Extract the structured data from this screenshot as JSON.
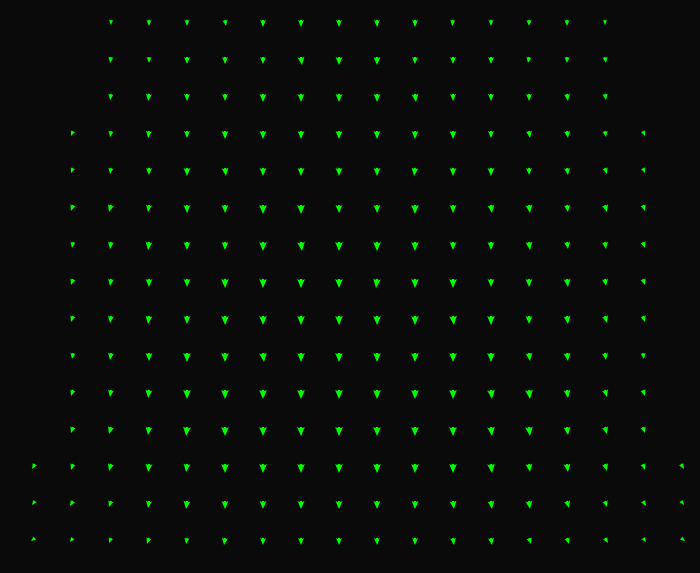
{
  "chart_data": {
    "type": "quiver",
    "color": "#00ff00",
    "tick_labels": false,
    "grid": false,
    "xlim": [
      0,
      700
    ],
    "ylim": [
      573,
      0
    ],
    "x": [
      35,
      73,
      111,
      149,
      187,
      225,
      263,
      301,
      339,
      377,
      415,
      453,
      491,
      529,
      567,
      605,
      643,
      681
    ],
    "y": [
      20,
      57,
      94,
      131,
      168,
      205,
      242,
      279,
      316,
      353,
      390,
      427,
      464,
      501,
      538
    ],
    "u": [
      [
        null,
        null,
        0,
        0,
        0,
        1,
        0,
        0,
        0,
        0,
        0,
        -1,
        0,
        0,
        0,
        0,
        null,
        null
      ],
      [
        null,
        null,
        -1,
        0,
        0,
        0,
        0,
        1,
        0,
        0,
        0,
        0,
        0,
        -1,
        0,
        1,
        null,
        null
      ],
      [
        null,
        null,
        -1,
        -1,
        0,
        0,
        0,
        0,
        0,
        0,
        1,
        0,
        0,
        0,
        1,
        1,
        null,
        null
      ],
      [
        null,
        -2,
        -1,
        -1,
        0,
        0,
        0,
        0,
        0,
        0,
        0,
        0,
        0,
        1,
        1,
        1,
        2,
        null
      ],
      [
        null,
        -2,
        -1,
        0,
        0,
        1,
        0,
        0,
        0,
        0,
        -1,
        0,
        0,
        0,
        1,
        2,
        2,
        null
      ],
      [
        null,
        -2,
        -2,
        -1,
        0,
        0,
        0,
        0,
        0,
        0,
        0,
        0,
        1,
        1,
        1,
        2,
        2,
        null
      ],
      [
        null,
        -1,
        -1,
        -1,
        0,
        0,
        0,
        1,
        0,
        0,
        0,
        0,
        0,
        1,
        1,
        1,
        2,
        null
      ],
      [
        null,
        -2,
        -1,
        0,
        0,
        0,
        0,
        0,
        0,
        -1,
        0,
        0,
        0,
        0,
        1,
        1,
        2,
        null
      ],
      [
        null,
        -2,
        -1,
        -1,
        0,
        0,
        0,
        0,
        0,
        0,
        0,
        1,
        0,
        0,
        1,
        2,
        2,
        null
      ],
      [
        null,
        -1,
        -1,
        0,
        0,
        0,
        1,
        0,
        0,
        0,
        0,
        0,
        0,
        1,
        1,
        1,
        1,
        null
      ],
      [
        null,
        -2,
        -1,
        -1,
        0,
        0,
        0,
        0,
        0,
        0,
        0,
        0,
        1,
        1,
        1,
        2,
        2,
        null
      ],
      [
        null,
        -2,
        -2,
        -1,
        -1,
        0,
        0,
        0,
        0,
        0,
        0,
        0,
        1,
        1,
        1,
        2,
        2,
        null
      ],
      [
        -3,
        -2,
        -2,
        -1,
        -1,
        0,
        0,
        0,
        0,
        0,
        0,
        0,
        1,
        1,
        1,
        2,
        2,
        3
      ],
      [
        -3,
        -3,
        -2,
        -1,
        -1,
        0,
        0,
        0,
        0,
        0,
        0,
        1,
        1,
        1,
        2,
        2,
        3,
        3
      ],
      [
        -4,
        -3,
        -2,
        -2,
        -1,
        -1,
        0,
        0,
        0,
        0,
        0,
        1,
        1,
        2,
        2,
        3,
        3,
        4
      ]
    ],
    "v": [
      [
        null,
        null,
        5,
        6,
        6,
        6,
        7,
        7,
        7,
        7,
        7,
        6,
        6,
        6,
        6,
        5,
        null,
        null
      ],
      [
        null,
        null,
        6,
        6,
        7,
        7,
        7,
        8,
        8,
        8,
        7,
        7,
        7,
        6,
        6,
        6,
        null,
        null
      ],
      [
        null,
        null,
        6,
        7,
        7,
        7,
        8,
        8,
        8,
        8,
        8,
        7,
        7,
        7,
        7,
        6,
        null,
        null
      ],
      [
        null,
        5,
        6,
        7,
        7,
        8,
        8,
        8,
        8,
        8,
        8,
        8,
        7,
        7,
        7,
        6,
        5,
        null
      ],
      [
        null,
        5,
        6,
        7,
        8,
        8,
        8,
        8,
        8,
        8,
        8,
        8,
        8,
        7,
        7,
        6,
        5,
        null
      ],
      [
        null,
        6,
        7,
        7,
        8,
        8,
        9,
        9,
        8,
        8,
        9,
        8,
        8,
        8,
        7,
        7,
        6,
        null
      ],
      [
        null,
        6,
        7,
        8,
        8,
        8,
        9,
        9,
        9,
        9,
        9,
        8,
        8,
        8,
        7,
        7,
        6,
        null
      ],
      [
        null,
        6,
        7,
        8,
        8,
        9,
        9,
        9,
        9,
        9,
        9,
        9,
        8,
        8,
        8,
        7,
        6,
        null
      ],
      [
        null,
        6,
        7,
        8,
        8,
        9,
        9,
        9,
        9,
        9,
        9,
        9,
        9,
        8,
        8,
        7,
        6,
        null
      ],
      [
        null,
        6,
        7,
        8,
        9,
        9,
        9,
        9,
        9,
        9,
        9,
        9,
        9,
        8,
        8,
        7,
        6,
        null
      ],
      [
        null,
        6,
        7,
        8,
        9,
        9,
        9,
        9,
        9,
        9,
        9,
        9,
        9,
        9,
        8,
        7,
        6,
        null
      ],
      [
        null,
        6,
        7,
        8,
        9,
        9,
        9,
        9,
        9,
        9,
        9,
        9,
        9,
        9,
        8,
        7,
        6,
        null
      ],
      [
        5,
        6,
        7,
        8,
        8,
        9,
        9,
        9,
        9,
        9,
        9,
        9,
        9,
        8,
        8,
        7,
        6,
        5
      ],
      [
        4,
        5,
        6,
        7,
        8,
        8,
        8,
        8,
        8,
        8,
        8,
        8,
        8,
        8,
        7,
        6,
        5,
        4
      ],
      [
        3,
        4,
        5,
        6,
        6,
        7,
        7,
        7,
        7,
        7,
        7,
        7,
        7,
        6,
        6,
        5,
        4,
        3
      ]
    ]
  }
}
